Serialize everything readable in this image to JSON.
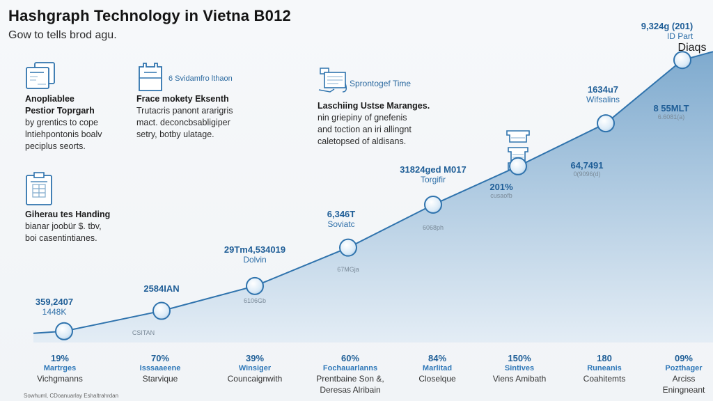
{
  "header": {
    "title": "Hashgraph Technology in Vietna B012",
    "subtitle": "Gow to tells brod agu."
  },
  "features": [
    {
      "icon": "documents-icon",
      "icon_label": "",
      "heading1": "Anopliablee",
      "heading2": "Pestior Toprgarh",
      "lines": [
        "by grentics to cope",
        "lntiehpontonis boalv",
        "peciplus seorts."
      ]
    },
    {
      "icon": "calendar-icon",
      "icon_label": "6 Svidamfro lthaon",
      "heading1": "Frace mokety Eksenth",
      "heading2": "",
      "lines": [
        "Trutacris panont ararigris",
        "mact. deconcbsabligiper",
        "setry, botby ulatage."
      ]
    },
    {
      "icon": "laptop-icon",
      "icon_label": "Sprontogef Time",
      "heading1": "Laschiing Ustse Maranges.",
      "heading2": "",
      "lines": [
        "nin griepiny of gnefenis",
        "and toction an iri allingnt",
        "caletopsed of aldisans."
      ]
    },
    {
      "icon": "clipboard-icon",
      "icon_label": "",
      "heading1": "Giherau tes Handing",
      "heading2": "",
      "lines": [
        "bianar joobür $. tbv,",
        "boi casentintianes."
      ]
    }
  ],
  "server_icon": "server-stack-icon",
  "colors": {
    "line": "#2f73ad",
    "fill_top": "#7fabcf",
    "fill_bottom": "#e3edf5",
    "marker": "#e9f3fb",
    "accent": "#1f5e97"
  },
  "chart_data": {
    "type": "area",
    "title": "Hashgraph Technology in Vietna B012",
    "subtitle": "Gow to tells brod agu.",
    "xlabel": "",
    "ylabel": "",
    "grid": false,
    "legend": "none",
    "x": [
      "19%",
      "70%",
      "39%",
      "60%",
      "84%",
      "150%",
      "180",
      "09%"
    ],
    "y": [
      5,
      14,
      25,
      42,
      61,
      78,
      97,
      125
    ],
    "ylim": [
      0,
      130
    ],
    "point_labels": [
      {
        "value": "359,2407",
        "sub": "1448K",
        "note": ""
      },
      {
        "value": "2584IAN",
        "sub": "",
        "note": "CSITAN"
      },
      {
        "value": "29Tm4,534019",
        "sub": "Dolvin",
        "note": "6106Gb"
      },
      {
        "value": "6,346T",
        "sub": "Soviatc",
        "note": "67MGja"
      },
      {
        "value": "31824ged M017",
        "sub": "Torgifir",
        "note": "6068ph"
      },
      {
        "value": "201%",
        "sub": "",
        "note": "cusaofb"
      },
      {
        "value": "1634u7",
        "sub": "Wifsalins",
        "note": ""
      },
      {
        "value": "9,324g (201)",
        "sub": "ID Part",
        "note": "Diaqs"
      }
    ],
    "area_labels": [
      {
        "value": "64,7491",
        "note": "0(9096(d)"
      },
      {
        "value": "8 55MLT",
        "note": "6.6081(a)"
      }
    ],
    "categories": [
      {
        "pct": "19%",
        "name": "Martrges",
        "desc": [
          "Vichgmanns"
        ]
      },
      {
        "pct": "70%",
        "name": "Isssaaeene",
        "desc": [
          "Starvique"
        ]
      },
      {
        "pct": "39%",
        "name": "Winsiger",
        "desc": [
          "Councaignwith"
        ]
      },
      {
        "pct": "60%",
        "name": "Fochauarlanns",
        "desc": [
          "Prentbaine Son &,",
          "Deresas Alribain"
        ]
      },
      {
        "pct": "84%",
        "name": "Marlitad",
        "desc": [
          "Closelque"
        ]
      },
      {
        "pct": "150%",
        "name": "Sintives",
        "desc": [
          "Viens Amibath"
        ]
      },
      {
        "pct": "180",
        "name": "Runeanis",
        "desc": [
          "Coahitemts"
        ]
      },
      {
        "pct": "09%",
        "name": "Pozthager",
        "desc": [
          "Arciss",
          "Eningneant"
        ]
      }
    ]
  },
  "footer": {
    "source": "Sowhuml, CDoanuarlay Eshaltrahrdan"
  }
}
